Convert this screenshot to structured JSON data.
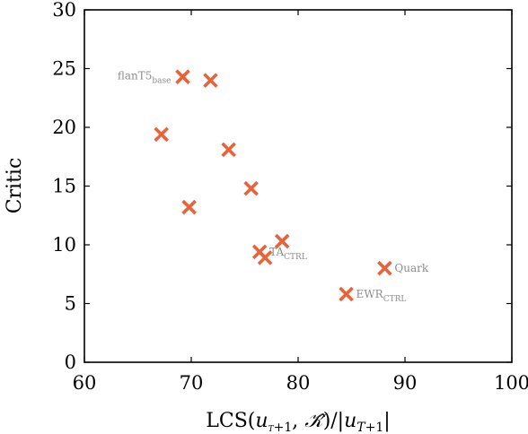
{
  "chart_data": {
    "type": "scatter",
    "xlabel": "LCS(u_{T+1}, Ŷ̂)/|u_{T+1}|",
    "ylabel": "Critic",
    "xlim": [
      60,
      100
    ],
    "ylim": [
      0,
      30
    ],
    "xticks": [
      60,
      70,
      80,
      90,
      100
    ],
    "yticks": [
      0,
      5,
      10,
      15,
      20,
      25,
      30
    ],
    "grid": false,
    "marker": "x",
    "marker_color": "#e8623a",
    "series": [
      {
        "points": [
          {
            "x": 69.2,
            "y": 24.3,
            "label": "flanT5",
            "label_sub": "base",
            "label_side": "left"
          },
          {
            "x": 71.8,
            "y": 24.0
          },
          {
            "x": 67.2,
            "y": 19.4
          },
          {
            "x": 73.5,
            "y": 18.1
          },
          {
            "x": 75.6,
            "y": 14.8
          },
          {
            "x": 69.8,
            "y": 13.2
          },
          {
            "x": 78.5,
            "y": 10.3
          },
          {
            "x": 76.4,
            "y": 9.4,
            "label": "TA",
            "label_sub": "CTRL",
            "label_side": "right"
          },
          {
            "x": 76.9,
            "y": 8.9
          },
          {
            "x": 88.1,
            "y": 8.0,
            "label": "Quark",
            "label_side": "right"
          },
          {
            "x": 84.5,
            "y": 5.8,
            "label": "EWR",
            "label_sub": "CTRL",
            "label_side": "right"
          }
        ]
      }
    ]
  }
}
